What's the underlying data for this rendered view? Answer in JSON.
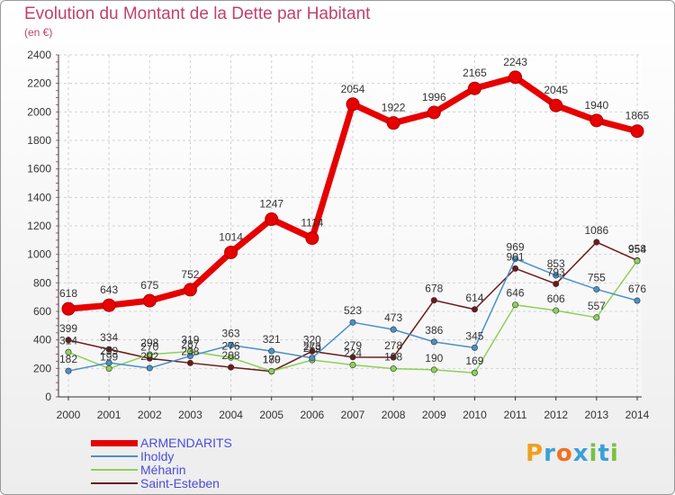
{
  "chart_data": {
    "type": "line",
    "title": "Evolution du Montant de la Dette par Habitant",
    "subtitle": "(en €)",
    "xlabel": "",
    "ylabel": "",
    "ylim": [
      0,
      2400
    ],
    "yticks": [
      0,
      200,
      400,
      600,
      800,
      1000,
      1200,
      1400,
      1600,
      1800,
      2000,
      2200,
      2400
    ],
    "categories": [
      "2000",
      "2001",
      "2002",
      "2003",
      "2004",
      "2005",
      "2006",
      "2007",
      "2008",
      "2009",
      "2010",
      "2011",
      "2012",
      "2013",
      "2014"
    ],
    "grid": true,
    "legend_position": "bottom-left",
    "series": [
      {
        "name": "ARMENDARITS",
        "color": "#e60000",
        "values": [
          618,
          643,
          675,
          752,
          1014,
          1247,
          1114,
          2054,
          1922,
          1996,
          2165,
          2243,
          2045,
          1940,
          1865
        ]
      },
      {
        "name": "Iholdy",
        "color": "#4a90c8",
        "values": [
          182,
          239,
          202,
          287,
          363,
          321,
          273,
          523,
          473,
          386,
          345,
          969,
          853,
          755,
          676
        ]
      },
      {
        "name": "Méharin",
        "color": "#8ed05a",
        "values": [
          314,
          199,
          298,
          319,
          276,
          180,
          259,
          224,
          198,
          190,
          169,
          646,
          606,
          557,
          954
        ]
      },
      {
        "name": "Saint-Esteben",
        "color": "#6b1a1a",
        "values": [
          399,
          334,
          270,
          238,
          208,
          179,
          320,
          279,
          278,
          678,
          614,
          901,
          793,
          1086,
          958
        ]
      }
    ]
  },
  "brand": {
    "letters": [
      {
        "ch": "P",
        "color": "#f0a020"
      },
      {
        "ch": "r",
        "color": "#3aa0d8"
      },
      {
        "ch": "o",
        "color": "#f07020"
      },
      {
        "ch": "x",
        "color": "#3aa0d8"
      },
      {
        "ch": "i",
        "color": "#7ac040"
      },
      {
        "ch": "t",
        "color": "#3aa0d8"
      },
      {
        "ch": "i",
        "color": "#7ac040"
      }
    ]
  }
}
